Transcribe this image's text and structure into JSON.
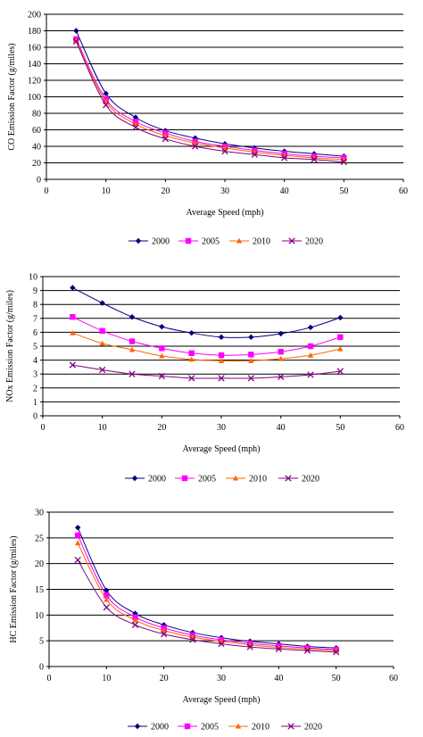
{
  "chart_data": [
    {
      "type": "line",
      "xlabel": "Average Speed (mph)",
      "ylabel": "CO Emission Factor (g/miles)",
      "xlim": [
        0,
        60
      ],
      "ylim": [
        0,
        200
      ],
      "xticks": [
        "0",
        "10",
        "20",
        "30",
        "40",
        "50",
        "60"
      ],
      "yticks": [
        "0",
        "20",
        "40",
        "60",
        "80",
        "100",
        "120",
        "140",
        "160",
        "180",
        "200"
      ],
      "grid": "horizontal",
      "legend": "bottom",
      "x": [
        5,
        10,
        15,
        20,
        25,
        30,
        35,
        40,
        45,
        50
      ],
      "series": [
        {
          "name": "2000",
          "color": "#000080",
          "marker": "diamond",
          "values": [
            180,
            104,
            75,
            59,
            50,
            43,
            38,
            34,
            31,
            28
          ]
        },
        {
          "name": "2005",
          "color": "#ff00ff",
          "marker": "square",
          "values": [
            170,
            97,
            70,
            56,
            46,
            40,
            35,
            31,
            28,
            26
          ]
        },
        {
          "name": "2010",
          "color": "#ff6600",
          "marker": "triangle",
          "values": [
            168,
            94,
            67,
            53,
            44,
            38,
            33,
            29,
            26,
            24
          ]
        },
        {
          "name": "2020",
          "color": "#800080",
          "marker": "x",
          "values": [
            167,
            90,
            63,
            49,
            40,
            34,
            30,
            26,
            24,
            21
          ]
        }
      ]
    },
    {
      "type": "line",
      "xlabel": "Average Speed (mph)",
      "ylabel": "NOx Emission Factor (g/miles)",
      "xlim": [
        0,
        60
      ],
      "ylim": [
        0,
        10
      ],
      "xticks": [
        "0",
        "10",
        "20",
        "30",
        "40",
        "50",
        "60"
      ],
      "yticks": [
        "0",
        "1",
        "2",
        "3",
        "4",
        "5",
        "6",
        "7",
        "8",
        "9",
        "10"
      ],
      "grid": "horizontal",
      "legend": "bottom",
      "x": [
        5,
        10,
        15,
        20,
        25,
        30,
        35,
        40,
        45,
        50
      ],
      "series": [
        {
          "name": "2000",
          "color": "#000080",
          "marker": "diamond",
          "values": [
            9.2,
            8.1,
            7.1,
            6.4,
            5.95,
            5.65,
            5.65,
            5.9,
            6.35,
            7.05
          ]
        },
        {
          "name": "2005",
          "color": "#ff00ff",
          "marker": "square",
          "values": [
            7.1,
            6.1,
            5.35,
            4.85,
            4.5,
            4.35,
            4.4,
            4.6,
            5.0,
            5.65
          ]
        },
        {
          "name": "2010",
          "color": "#ff6600",
          "marker": "triangle",
          "values": [
            5.95,
            5.2,
            4.75,
            4.3,
            4.05,
            3.95,
            3.95,
            4.1,
            4.35,
            4.8
          ]
        },
        {
          "name": "2020",
          "color": "#800080",
          "marker": "x",
          "values": [
            3.65,
            3.3,
            3.0,
            2.85,
            2.7,
            2.7,
            2.7,
            2.8,
            2.95,
            3.2
          ]
        }
      ]
    },
    {
      "type": "line",
      "xlabel": "Average Speed (mph)",
      "ylabel": "HC Emission Factor (g/miles)",
      "xlim": [
        0,
        60
      ],
      "ylim": [
        0,
        30
      ],
      "xticks": [
        "0",
        "10",
        "20",
        "30",
        "40",
        "50",
        "60"
      ],
      "yticks": [
        "0",
        "5",
        "10",
        "15",
        "20",
        "25",
        "30"
      ],
      "grid": "horizontal",
      "legend": "bottom",
      "x": [
        5,
        10,
        15,
        20,
        25,
        30,
        35,
        40,
        45,
        50
      ],
      "series": [
        {
          "name": "2000",
          "color": "#000080",
          "marker": "diamond",
          "values": [
            27,
            14.8,
            10.3,
            8.1,
            6.6,
            5.6,
            4.9,
            4.4,
            3.9,
            3.6
          ]
        },
        {
          "name": "2005",
          "color": "#ff00ff",
          "marker": "square",
          "values": [
            25.5,
            13.8,
            9.6,
            7.5,
            6.1,
            5.2,
            4.5,
            4.0,
            3.6,
            3.3
          ]
        },
        {
          "name": "2010",
          "color": "#ff6600",
          "marker": "triangle",
          "values": [
            24,
            13.0,
            9.0,
            7.0,
            5.7,
            4.9,
            4.2,
            3.7,
            3.4,
            3.1
          ]
        },
        {
          "name": "2020",
          "color": "#800080",
          "marker": "x",
          "values": [
            20.7,
            11.5,
            8.1,
            6.3,
            5.2,
            4.4,
            3.8,
            3.4,
            3.1,
            2.8
          ]
        }
      ]
    }
  ]
}
